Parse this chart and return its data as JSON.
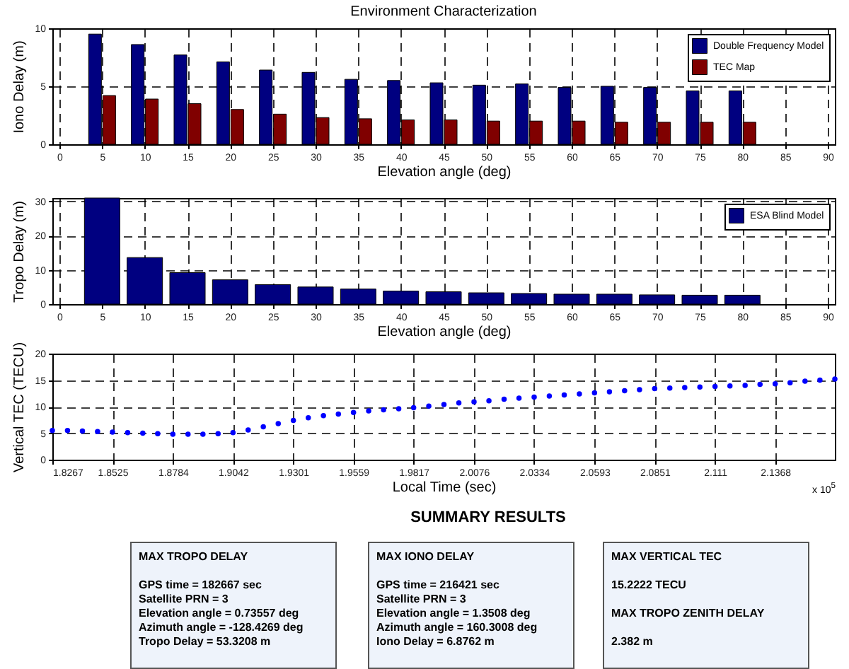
{
  "chart_data": [
    {
      "type": "bar",
      "title": "Environment Characterization",
      "xlabel": "Elevation angle (deg)",
      "ylabel": "Iono Delay (m)",
      "x": [
        5,
        10,
        15,
        20,
        25,
        30,
        35,
        40,
        45,
        50,
        55,
        60,
        65,
        70,
        75,
        80
      ],
      "xlim": [
        0,
        90
      ],
      "xticks": [
        0,
        5,
        10,
        15,
        20,
        25,
        30,
        35,
        40,
        45,
        50,
        55,
        60,
        65,
        70,
        75,
        80,
        85,
        90
      ],
      "ylim": [
        0,
        10
      ],
      "yticks": [
        0,
        5,
        10
      ],
      "grid": true,
      "legend": "top right",
      "series": [
        {
          "name": "Double Frequency Model",
          "color": "#000080",
          "values": [
            9.5,
            8.6,
            7.7,
            7.1,
            6.4,
            6.2,
            5.6,
            5.5,
            5.3,
            5.1,
            5.2,
            4.9,
            5.0,
            4.9,
            4.6,
            4.6
          ]
        },
        {
          "name": "TEC Map",
          "color": "#800000",
          "values": [
            4.2,
            3.9,
            3.5,
            3.0,
            2.6,
            2.3,
            2.2,
            2.1,
            2.1,
            2.0,
            2.0,
            2.0,
            1.9,
            1.9,
            1.9,
            1.9
          ]
        }
      ]
    },
    {
      "type": "bar",
      "xlabel": "Elevation angle (deg)",
      "ylabel": "Tropo Delay (m)",
      "x": [
        5,
        10,
        15,
        20,
        25,
        30,
        35,
        40,
        45,
        50,
        55,
        60,
        65,
        70,
        75,
        80
      ],
      "xlim": [
        0,
        90
      ],
      "xticks": [
        0,
        5,
        10,
        15,
        20,
        25,
        30,
        35,
        40,
        45,
        50,
        55,
        60,
        65,
        70,
        75,
        80,
        85,
        90
      ],
      "ylim": [
        0,
        31
      ],
      "yticks": [
        0,
        10,
        20,
        30
      ],
      "grid": true,
      "legend": "top right",
      "series": [
        {
          "name": "ESA Blind Model",
          "color": "#000080",
          "values": [
            31,
            13.6,
            9.2,
            7.1,
            5.7,
            5.0,
            4.4,
            3.8,
            3.6,
            3.3,
            3.1,
            2.9,
            2.9,
            2.7,
            2.6,
            2.6
          ]
        }
      ]
    },
    {
      "type": "scatter",
      "xlabel": "Local Time (sec)",
      "ylabel": "Vertical TEC (TECU)",
      "xlim": [
        1.8267,
        2.1624
      ],
      "xticks": [
        1.8267,
        1.8525,
        1.8784,
        1.9042,
        1.9301,
        1.9559,
        1.9817,
        2.0076,
        2.0334,
        2.0593,
        2.0851,
        2.111,
        2.1368
      ],
      "ylim": [
        0,
        20
      ],
      "yticks": [
        0,
        5,
        10,
        15,
        20
      ],
      "grid": true,
      "marker": "circle",
      "annotations": [
        "x 10$^{5}$"
      ],
      "x": [
        1.8267,
        1.8332,
        1.8396,
        1.8461,
        1.8525,
        1.859,
        1.8655,
        1.8719,
        1.8784,
        1.8849,
        1.8913,
        1.8978,
        1.9042,
        1.9107,
        1.9172,
        1.9236,
        1.9301,
        1.9365,
        1.943,
        1.9494,
        1.9559,
        1.9624,
        1.9688,
        1.9753,
        1.9817,
        1.9882,
        1.9947,
        2.0011,
        2.0076,
        2.014,
        2.0205,
        2.0269,
        2.0334,
        2.0399,
        2.0463,
        2.0528,
        2.0593,
        2.0657,
        2.0722,
        2.0786,
        2.0851,
        2.0916,
        2.098,
        2.1045,
        2.111,
        2.1174,
        2.1239,
        2.1303,
        2.1368,
        2.1432,
        2.1496,
        2.156,
        2.1624
      ],
      "series": [
        {
          "color": "#0000ff",
          "values": [
            5.5,
            5.5,
            5.4,
            5.3,
            5.2,
            5.1,
            5.0,
            4.9,
            4.8,
            4.8,
            4.8,
            4.9,
            5.1,
            5.6,
            6.2,
            6.8,
            7.4,
            7.9,
            8.3,
            8.6,
            8.9,
            9.2,
            9.4,
            9.6,
            9.8,
            10.1,
            10.4,
            10.7,
            10.9,
            11.1,
            11.4,
            11.6,
            11.8,
            12.0,
            12.2,
            12.4,
            12.6,
            12.8,
            13.0,
            13.2,
            13.4,
            13.5,
            13.6,
            13.7,
            13.8,
            13.9,
            14.0,
            14.2,
            14.3,
            14.5,
            14.8,
            15.0,
            15.2
          ]
        }
      ]
    },
    {
      "type": "other",
      "title": "SUMMARY RESULTS"
    },
    {
      "type": "other",
      "title": "MAX TROPO DELAY",
      "annotations": [
        "GPS time = 182667 sec",
        "Satellite PRN = 3",
        "Elevation angle = 0.73557 deg",
        "Azimuth angle = -128.4269 deg",
        "Tropo Delay = 53.3208 m"
      ]
    },
    {
      "type": "other",
      "title": "MAX IONO DELAY",
      "annotations": [
        "GPS time = 216421 sec",
        "Satellite PRN = 3",
        "Elevation angle = 1.3508 deg",
        "Azimuth angle = 160.3008 deg",
        "Iono Delay = 6.8762 m"
      ]
    },
    {
      "type": "other",
      "title": "MAX VERTICAL TEC",
      "annotations": [
        "15.2222 TECU",
        "MAX TROPO ZENITH DELAY",
        "2.382 m"
      ]
    }
  ]
}
